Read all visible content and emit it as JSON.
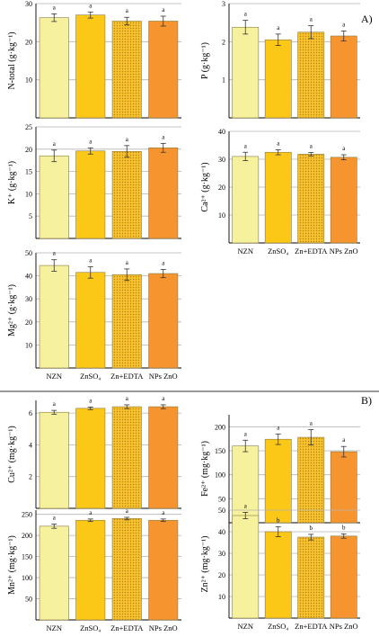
{
  "section_labels": {
    "a": "A)",
    "b": "B)"
  },
  "colors": {
    "bars": [
      "#f6f19c",
      "#fcc818",
      "#f7c230",
      "#f69530"
    ],
    "pattern_dot": "#b9820c",
    "grid": "#b3b3b3",
    "error": "#333333"
  },
  "chart_data": [
    {
      "type": "bar",
      "id": "n-total",
      "categories": [
        "NZN",
        "ZnSO₄",
        "Zn+EDTA",
        "NPs ZnO"
      ],
      "values": [
        26.3,
        27.0,
        25.4,
        25.4
      ],
      "errors": [
        1.0,
        0.8,
        1.0,
        1.3
      ],
      "letters": [
        "a",
        "a",
        "a",
        "a"
      ],
      "ylabel": "N-total (g·kg⁻¹)",
      "ylim": [
        0,
        30
      ],
      "yticks": [
        10,
        20,
        30
      ],
      "grid": true
    },
    {
      "type": "bar",
      "id": "p",
      "categories": [
        "NZN",
        "ZnSO₄",
        "Zn+EDTA",
        "NPs ZnO"
      ],
      "values": [
        2.38,
        2.05,
        2.25,
        2.15
      ],
      "errors": [
        0.18,
        0.15,
        0.17,
        0.13
      ],
      "letters": [
        "a",
        "a",
        "a",
        "a"
      ],
      "ylabel": "P (g·kg⁻¹)",
      "ylim": [
        0,
        3
      ],
      "yticks": [
        1,
        2,
        3
      ],
      "grid": true
    },
    {
      "type": "bar",
      "id": "k",
      "categories": [
        "NZN",
        "ZnSO₄",
        "Zn+EDTA",
        "NPs ZnO"
      ],
      "values": [
        18.5,
        19.6,
        19.5,
        20.3
      ],
      "errors": [
        1.3,
        0.7,
        1.3,
        1.0
      ],
      "letters": [
        "a",
        "a",
        "a",
        "a"
      ],
      "ylabel": "K⁺ (g·kg⁻¹)",
      "ylim": [
        0,
        25
      ],
      "yticks": [
        5,
        10,
        15,
        20,
        25
      ],
      "grid": true
    },
    {
      "type": "bar",
      "id": "ca",
      "categories": [
        "NZN",
        "ZnSO₄",
        "Zn+EDTA",
        "NPs ZnO"
      ],
      "values": [
        31.0,
        32.5,
        31.8,
        30.7
      ],
      "errors": [
        1.5,
        0.9,
        0.6,
        0.9
      ],
      "letters": [
        "a",
        "a",
        "a",
        "a"
      ],
      "ylabel": "Ca²⁺ (g·kg⁻¹)",
      "ylim": [
        0,
        40
      ],
      "yticks": [
        10,
        20,
        30,
        40
      ],
      "grid": true
    },
    {
      "type": "bar",
      "id": "mg",
      "categories": [
        "NZN",
        "ZnSO₄",
        "Zn+EDTA",
        "NPs ZnO"
      ],
      "values": [
        44.5,
        41.5,
        40.5,
        41.0
      ],
      "errors": [
        2.5,
        2.5,
        2.5,
        1.8
      ],
      "letters": [
        "a",
        "a",
        "a",
        "a"
      ],
      "ylabel": "Mg²⁺ (g·kg⁻¹)",
      "ylim": [
        0,
        50
      ],
      "yticks": [
        10,
        20,
        30,
        40,
        50
      ],
      "grid": true
    },
    {
      "type": "bar",
      "id": "cu",
      "categories": [
        "NZN",
        "ZnSO₄",
        "Zn+EDTA",
        "NPs ZnO"
      ],
      "values": [
        6.05,
        6.3,
        6.4,
        6.4
      ],
      "errors": [
        0.12,
        0.08,
        0.12,
        0.12
      ],
      "letters": [
        "a",
        "a",
        "a",
        "a"
      ],
      "ylabel": "Cu²⁺ (mg·kg⁻¹)",
      "ylim": [
        0,
        6.8
      ],
      "yticks": [
        2,
        4,
        6
      ],
      "grid": true
    },
    {
      "type": "bar",
      "id": "fe",
      "categories": [
        "NZN",
        "ZnSO₄",
        "Zn+EDTA",
        "NPs ZnO"
      ],
      "values": [
        160,
        174,
        178,
        148
      ],
      "errors": [
        12,
        11,
        16,
        11
      ],
      "letters": [
        "a",
        "a",
        "a",
        "a"
      ],
      "ylabel": "Fe²⁺ (mg·kg⁻¹)",
      "ylim": [
        0,
        225
      ],
      "yticks": [
        50,
        100,
        150,
        200
      ],
      "grid": true
    },
    {
      "type": "bar",
      "id": "mn",
      "categories": [
        "NZN",
        "ZnSO₄",
        "Zn+EDTA",
        "NPs ZnO"
      ],
      "values": [
        222,
        236,
        240,
        236
      ],
      "errors": [
        5,
        3,
        3,
        3
      ],
      "letters": [
        "a",
        "a",
        "a",
        "a"
      ],
      "ylabel": "Mn²⁺ (mg·kg⁻¹)",
      "ylim": [
        0,
        260
      ],
      "yticks": [
        50,
        100,
        150,
        200,
        250
      ],
      "grid": true
    },
    {
      "type": "bar",
      "id": "zn",
      "categories": [
        "NZN",
        "ZnSO₄",
        "Zn+EDTA",
        "NPs ZnO"
      ],
      "values": [
        47.5,
        40.0,
        37.5,
        38.0
      ],
      "errors": [
        1.5,
        2.3,
        1.3,
        1.0
      ],
      "letters": [
        "a",
        "b",
        "b",
        "b"
      ],
      "ylabel": "Zn²⁺ (mg·kg⁻¹)",
      "ylim": [
        0,
        50
      ],
      "yticks": [
        10,
        20,
        30,
        40,
        50
      ],
      "grid": true
    }
  ]
}
